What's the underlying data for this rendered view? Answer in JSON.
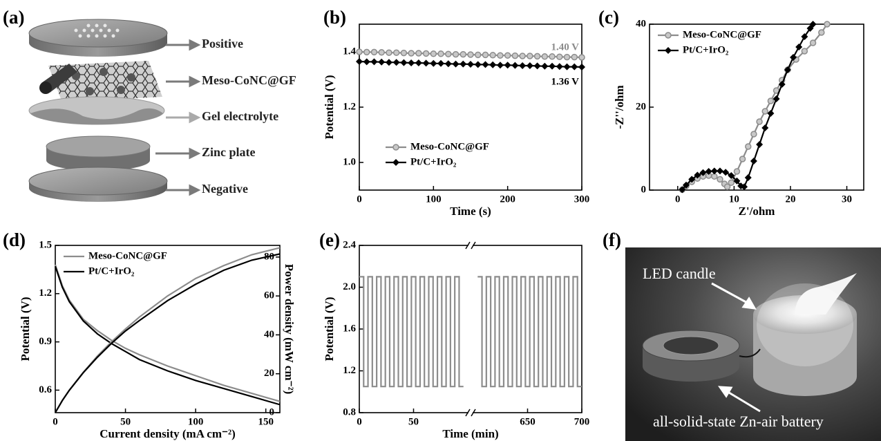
{
  "chart_data": [
    {
      "type": "line",
      "label": "(b)",
      "xlabel": "Time (s)",
      "ylabel": "Potential (V)",
      "x": [
        0,
        10,
        20,
        30,
        40,
        50,
        60,
        70,
        80,
        90,
        100,
        110,
        120,
        130,
        140,
        150,
        160,
        170,
        180,
        190,
        200,
        210,
        220,
        230,
        240,
        250,
        260,
        270,
        280,
        290,
        300
      ],
      "series": [
        {
          "name": "Meso-CoNC@GF",
          "color": "#8c8c8c",
          "marker": "circle",
          "values": [
            1.4,
            1.399,
            1.399,
            1.398,
            1.397,
            1.397,
            1.396,
            1.395,
            1.395,
            1.394,
            1.393,
            1.393,
            1.392,
            1.391,
            1.391,
            1.39,
            1.389,
            1.389,
            1.388,
            1.387,
            1.387,
            1.386,
            1.385,
            1.385,
            1.384,
            1.383,
            1.383,
            1.382,
            1.381,
            1.381,
            1.38
          ]
        },
        {
          "name": "Pt/C+IrO₂",
          "color": "#000000",
          "marker": "diamond",
          "values": [
            1.365,
            1.364,
            1.364,
            1.363,
            1.362,
            1.362,
            1.361,
            1.36,
            1.36,
            1.359,
            1.358,
            1.358,
            1.357,
            1.356,
            1.356,
            1.355,
            1.354,
            1.354,
            1.353,
            1.352,
            1.352,
            1.351,
            1.35,
            1.35,
            1.349,
            1.348,
            1.348,
            1.347,
            1.346,
            1.346,
            1.345
          ]
        }
      ],
      "annotations": [
        {
          "text": "1.40 V",
          "color": "#8c8c8c"
        },
        {
          "text": "1.36 V",
          "color": "#000000"
        }
      ],
      "xlim": [
        0,
        300
      ],
      "xticks": [
        0,
        100,
        200,
        300
      ],
      "ylim": [
        0.9,
        1.5
      ],
      "yticks": [
        {
          "value": 1,
          "label": "1.0"
        },
        1.2,
        1.4
      ],
      "legend": "lower left"
    },
    {
      "type": "line",
      "label": "(c)",
      "xlabel": "Z'/ohm",
      "ylabel": "-Z''/ohm",
      "series": [
        {
          "name": "Meso-CoNC@GF",
          "color": "#8c8c8c",
          "marker": "circle",
          "x": [
            0.8,
            1.5,
            2.5,
            3.5,
            4.5,
            5.5,
            6.5,
            7.5,
            8.3,
            8.8,
            9.5,
            10.5,
            11.5,
            12.5,
            13.5,
            14.5,
            15.5,
            16.5,
            17.5,
            18.5,
            19.5,
            21,
            22.5,
            24,
            25.5,
            26.5
          ],
          "values": [
            0.1,
            1,
            2,
            2.8,
            3.3,
            3.5,
            3.3,
            2.6,
            1.5,
            0.8,
            1.8,
            4.5,
            7.5,
            10.5,
            13.5,
            16.5,
            19,
            21.5,
            24,
            26.5,
            29,
            31.5,
            33.5,
            35.5,
            38,
            40
          ]
        },
        {
          "name": "Pt/C+IrO₂",
          "color": "#000000",
          "marker": "diamond",
          "x": [
            0.8,
            1.5,
            2.5,
            3.5,
            4.5,
            5.5,
            6.5,
            7.5,
            8.5,
            9.5,
            10.5,
            11.2,
            11.8,
            12.5,
            13.5,
            14.5,
            15.5,
            16.5,
            17.5,
            18.5,
            19.5,
            20.5,
            21.5,
            22.5,
            23.5,
            24
          ],
          "values": [
            0.1,
            1.2,
            2.6,
            3.6,
            4.2,
            4.5,
            4.6,
            4.6,
            4.3,
            3.5,
            2.2,
            1,
            0.8,
            3,
            7,
            11,
            15,
            18.5,
            22,
            25.5,
            29,
            32,
            34.5,
            37,
            39,
            40
          ]
        }
      ],
      "xlim": [
        -5,
        33
      ],
      "xticks": [
        0,
        10,
        20,
        30
      ],
      "ylim": [
        0,
        40
      ],
      "yticks": [
        0,
        20,
        40
      ],
      "legend": "upper left"
    },
    {
      "type": "line",
      "label": "(d)",
      "xlabel": "Current density (mA cm⁻²)",
      "ylabel": "Potential (V)",
      "y2label": "Power density (mW cm⁻²)",
      "x": [
        0,
        5,
        10,
        20,
        30,
        40,
        50,
        60,
        80,
        100,
        120,
        140,
        160
      ],
      "series": [
        {
          "name": "Meso-CoNC@GF",
          "color": "#8c8c8c",
          "values": [
            1.38,
            1.25,
            1.16,
            1.04,
            0.97,
            0.91,
            0.86,
            0.82,
            0.75,
            0.69,
            0.63,
            0.58,
            0.53
          ]
        },
        {
          "name": "Pt/C+IrO₂",
          "color": "#000000",
          "values": [
            1.37,
            1.24,
            1.15,
            1.03,
            0.95,
            0.89,
            0.84,
            0.79,
            0.72,
            0.66,
            0.61,
            0.56,
            0.51
          ]
        },
        {
          "color": "#8c8c8c",
          "axis": "y2",
          "values": [
            0,
            6.3,
            11.6,
            20.8,
            29.1,
            36.4,
            43,
            49.2,
            60,
            69,
            75.6,
            81.2,
            84.8
          ]
        },
        {
          "color": "#000000",
          "axis": "y2",
          "values": [
            0,
            6.2,
            11.5,
            20.6,
            28.5,
            35.6,
            42,
            47.4,
            57.6,
            66,
            73.2,
            78.4,
            81.6
          ]
        }
      ],
      "xlim": [
        0,
        160
      ],
      "xticks": [
        0,
        50,
        100,
        150
      ],
      "ylim": [
        0.46,
        1.5
      ],
      "yticks": [
        0.6,
        0.9,
        1.2,
        1.5
      ],
      "y2lim": [
        0,
        86
      ],
      "y2ticks": [
        0,
        20,
        40,
        60,
        80
      ],
      "legend": "upper left"
    },
    {
      "type": "line",
      "label": "(e)",
      "xlabel": "Time (min)",
      "ylabel": "Potential (V)",
      "x": [
        0,
        4,
        4,
        8,
        8,
        12,
        12,
        16,
        16,
        20,
        20,
        24,
        24,
        28,
        28,
        32,
        32,
        36,
        36,
        40,
        40,
        44,
        44,
        48,
        48,
        52,
        52,
        56,
        56,
        60,
        60,
        64,
        64,
        68,
        68,
        72,
        72,
        76,
        76,
        80,
        80,
        84,
        84,
        88,
        88,
        92,
        92,
        96,
        null,
        604,
        608,
        608,
        612,
        612,
        616,
        616,
        620,
        620,
        624,
        624,
        628,
        628,
        632,
        632,
        636,
        636,
        640,
        640,
        644,
        644,
        648,
        648,
        652,
        652,
        656,
        656,
        660,
        660,
        664,
        664,
        668,
        668,
        672,
        672,
        676,
        676,
        680,
        680,
        684,
        684,
        688,
        688,
        692,
        692,
        696,
        696,
        700
      ],
      "series": [
        {
          "color": "#8c8c8c",
          "values": [
            2.1,
            2.1,
            1.05,
            1.05,
            2.1,
            2.1,
            1.05,
            1.05,
            2.1,
            2.1,
            1.05,
            1.05,
            2.1,
            2.1,
            1.05,
            1.05,
            2.1,
            2.1,
            1.05,
            1.05,
            2.1,
            2.1,
            1.05,
            1.05,
            2.1,
            2.1,
            1.05,
            1.05,
            2.1,
            2.1,
            1.05,
            1.05,
            2.1,
            2.1,
            1.05,
            1.05,
            2.1,
            2.1,
            1.05,
            1.05,
            2.1,
            2.1,
            1.05,
            1.05,
            2.1,
            2.1,
            1.05,
            1.05,
            null,
            2.1,
            2.1,
            1.05,
            1.05,
            2.1,
            2.1,
            1.05,
            1.05,
            2.1,
            2.1,
            1.05,
            1.05,
            2.1,
            2.1,
            1.05,
            1.05,
            2.1,
            2.1,
            1.05,
            1.05,
            2.1,
            2.1,
            1.05,
            1.05,
            2.1,
            2.1,
            1.05,
            1.05,
            2.1,
            2.1,
            1.05,
            1.05,
            2.1,
            2.1,
            1.05,
            1.05,
            2.1,
            2.1,
            1.05,
            1.05,
            2.1,
            2.1,
            1.05,
            1.05,
            2.1,
            2.1,
            1.05,
            1.05
          ]
        }
      ],
      "xlim": [
        0,
        700
      ],
      "xbreak": [
        100,
        600
      ],
      "xticks": [
        0,
        50,
        650,
        700
      ],
      "ylim": [
        0.8,
        2.4
      ],
      "yticks": [
        0.8,
        1.2,
        1.6,
        {
          "value": 2,
          "label": "2.0"
        },
        2.4
      ]
    }
  ],
  "figure_a": {
    "label": "(a)",
    "layers": [
      "Positive",
      "Meso-CoNC@GF",
      "Gel electrolyte",
      "Zinc plate",
      "Negative"
    ]
  },
  "figure_f": {
    "label": "(f)",
    "annotations": [
      "LED candle",
      "all-solid-state Zn-air battery"
    ]
  }
}
